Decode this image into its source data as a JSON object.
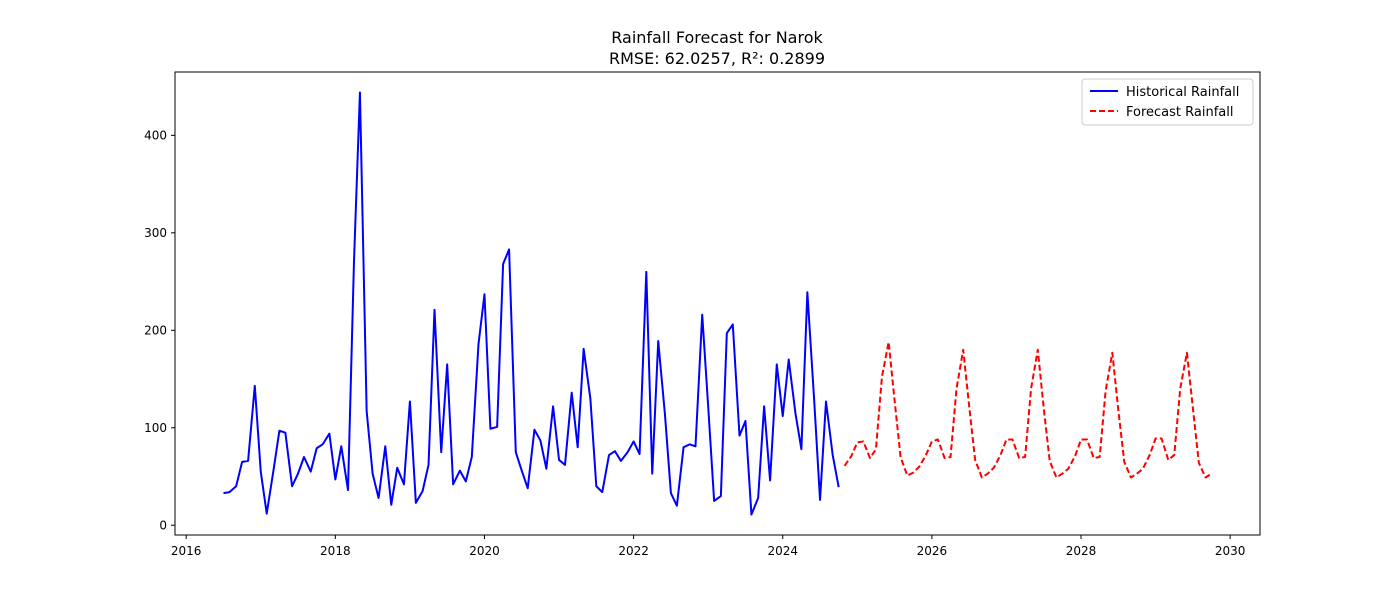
{
  "chart_data": {
    "type": "line",
    "title": "Rainfall Forecast for Narok",
    "subtitle": "RMSE: 62.0257, R²: 0.2899",
    "xlabel": "",
    "ylabel": "",
    "xlim": [
      2015.85,
      2030.4
    ],
    "ylim": [
      -10,
      465
    ],
    "xticks": [
      2016,
      2018,
      2020,
      2022,
      2024,
      2026,
      2028,
      2030
    ],
    "yticks": [
      0,
      100,
      200,
      300,
      400
    ],
    "grid": false,
    "legend_position": "top-right",
    "series": [
      {
        "name": "Historical Rainfall",
        "color": "#0000ff",
        "style": "solid",
        "points": [
          [
            2016.5,
            33
          ],
          [
            2016.58,
            34
          ],
          [
            2016.67,
            40
          ],
          [
            2016.75,
            65
          ],
          [
            2016.83,
            66
          ],
          [
            2016.92,
            143
          ],
          [
            2017.0,
            55
          ],
          [
            2017.08,
            12
          ],
          [
            2017.17,
            56
          ],
          [
            2017.25,
            97
          ],
          [
            2017.33,
            95
          ],
          [
            2017.42,
            40
          ],
          [
            2017.5,
            53
          ],
          [
            2017.58,
            70
          ],
          [
            2017.67,
            55
          ],
          [
            2017.75,
            79
          ],
          [
            2017.83,
            83
          ],
          [
            2017.92,
            94
          ],
          [
            2018.0,
            47
          ],
          [
            2018.08,
            81
          ],
          [
            2018.17,
            36
          ],
          [
            2018.25,
            270
          ],
          [
            2018.33,
            444
          ],
          [
            2018.42,
            117
          ],
          [
            2018.5,
            53
          ],
          [
            2018.58,
            28
          ],
          [
            2018.67,
            81
          ],
          [
            2018.75,
            21
          ],
          [
            2018.83,
            59
          ],
          [
            2018.92,
            42
          ],
          [
            2019.0,
            127
          ],
          [
            2019.08,
            23
          ],
          [
            2019.17,
            35
          ],
          [
            2019.25,
            62
          ],
          [
            2019.33,
            221
          ],
          [
            2019.42,
            75
          ],
          [
            2019.5,
            165
          ],
          [
            2019.58,
            42
          ],
          [
            2019.67,
            56
          ],
          [
            2019.75,
            45
          ],
          [
            2019.83,
            70
          ],
          [
            2019.92,
            186
          ],
          [
            2020.0,
            237
          ],
          [
            2020.08,
            99
          ],
          [
            2020.17,
            101
          ],
          [
            2020.25,
            268
          ],
          [
            2020.33,
            283
          ],
          [
            2020.42,
            75
          ],
          [
            2020.5,
            56
          ],
          [
            2020.58,
            38
          ],
          [
            2020.67,
            98
          ],
          [
            2020.75,
            87
          ],
          [
            2020.83,
            58
          ],
          [
            2020.92,
            122
          ],
          [
            2021.0,
            67
          ],
          [
            2021.08,
            62
          ],
          [
            2021.17,
            136
          ],
          [
            2021.25,
            80
          ],
          [
            2021.33,
            181
          ],
          [
            2021.42,
            130
          ],
          [
            2021.5,
            40
          ],
          [
            2021.58,
            34
          ],
          [
            2021.67,
            72
          ],
          [
            2021.75,
            76
          ],
          [
            2021.83,
            66
          ],
          [
            2021.92,
            75
          ],
          [
            2022.0,
            86
          ],
          [
            2022.08,
            73
          ],
          [
            2022.17,
            260
          ],
          [
            2022.25,
            53
          ],
          [
            2022.33,
            189
          ],
          [
            2022.42,
            114
          ],
          [
            2022.5,
            33
          ],
          [
            2022.58,
            20
          ],
          [
            2022.67,
            80
          ],
          [
            2022.75,
            83
          ],
          [
            2022.83,
            81
          ],
          [
            2022.92,
            216
          ],
          [
            2023.0,
            122
          ],
          [
            2023.08,
            25
          ],
          [
            2023.17,
            30
          ],
          [
            2023.25,
            197
          ],
          [
            2023.33,
            206
          ],
          [
            2023.42,
            92
          ],
          [
            2023.5,
            107
          ],
          [
            2023.58,
            11
          ],
          [
            2023.67,
            28
          ],
          [
            2023.75,
            122
          ],
          [
            2023.83,
            46
          ],
          [
            2023.92,
            165
          ],
          [
            2024.0,
            112
          ],
          [
            2024.08,
            170
          ],
          [
            2024.17,
            115
          ],
          [
            2024.25,
            78
          ],
          [
            2024.33,
            239
          ],
          [
            2024.42,
            130
          ],
          [
            2024.5,
            26
          ],
          [
            2024.58,
            127
          ],
          [
            2024.67,
            72
          ],
          [
            2024.75,
            39
          ]
        ]
      },
      {
        "name": "Forecast Rainfall",
        "color": "#ff0000",
        "style": "dashed",
        "points": [
          [
            2024.83,
            61
          ],
          [
            2024.92,
            71
          ],
          [
            2025.0,
            85
          ],
          [
            2025.08,
            86
          ],
          [
            2025.17,
            69
          ],
          [
            2025.25,
            78
          ],
          [
            2025.33,
            152
          ],
          [
            2025.42,
            188
          ],
          [
            2025.5,
            128
          ],
          [
            2025.58,
            70
          ],
          [
            2025.67,
            51
          ],
          [
            2025.75,
            54
          ],
          [
            2025.83,
            60
          ],
          [
            2025.92,
            72
          ],
          [
            2026.0,
            86
          ],
          [
            2026.08,
            88
          ],
          [
            2026.17,
            69
          ],
          [
            2026.25,
            70
          ],
          [
            2026.33,
            140
          ],
          [
            2026.42,
            180
          ],
          [
            2026.5,
            122
          ],
          [
            2026.58,
            67
          ],
          [
            2026.67,
            49
          ],
          [
            2026.75,
            53
          ],
          [
            2026.83,
            59
          ],
          [
            2026.92,
            72
          ],
          [
            2027.0,
            88
          ],
          [
            2027.08,
            88
          ],
          [
            2027.17,
            69
          ],
          [
            2027.25,
            70
          ],
          [
            2027.33,
            140
          ],
          [
            2027.42,
            180
          ],
          [
            2027.5,
            120
          ],
          [
            2027.58,
            66
          ],
          [
            2027.67,
            49
          ],
          [
            2027.75,
            53
          ],
          [
            2027.83,
            58
          ],
          [
            2027.92,
            71
          ],
          [
            2028.0,
            88
          ],
          [
            2028.08,
            88
          ],
          [
            2028.17,
            69
          ],
          [
            2028.25,
            70
          ],
          [
            2028.33,
            138
          ],
          [
            2028.42,
            177
          ],
          [
            2028.5,
            118
          ],
          [
            2028.58,
            65
          ],
          [
            2028.67,
            49
          ],
          [
            2028.75,
            53
          ],
          [
            2028.83,
            58
          ],
          [
            2028.92,
            72
          ],
          [
            2029.0,
            89
          ],
          [
            2029.08,
            89
          ],
          [
            2029.17,
            67
          ],
          [
            2029.25,
            72
          ],
          [
            2029.33,
            140
          ],
          [
            2029.42,
            177
          ],
          [
            2029.5,
            120
          ],
          [
            2029.58,
            64
          ],
          [
            2029.67,
            49
          ],
          [
            2029.75,
            53
          ]
        ]
      }
    ]
  }
}
